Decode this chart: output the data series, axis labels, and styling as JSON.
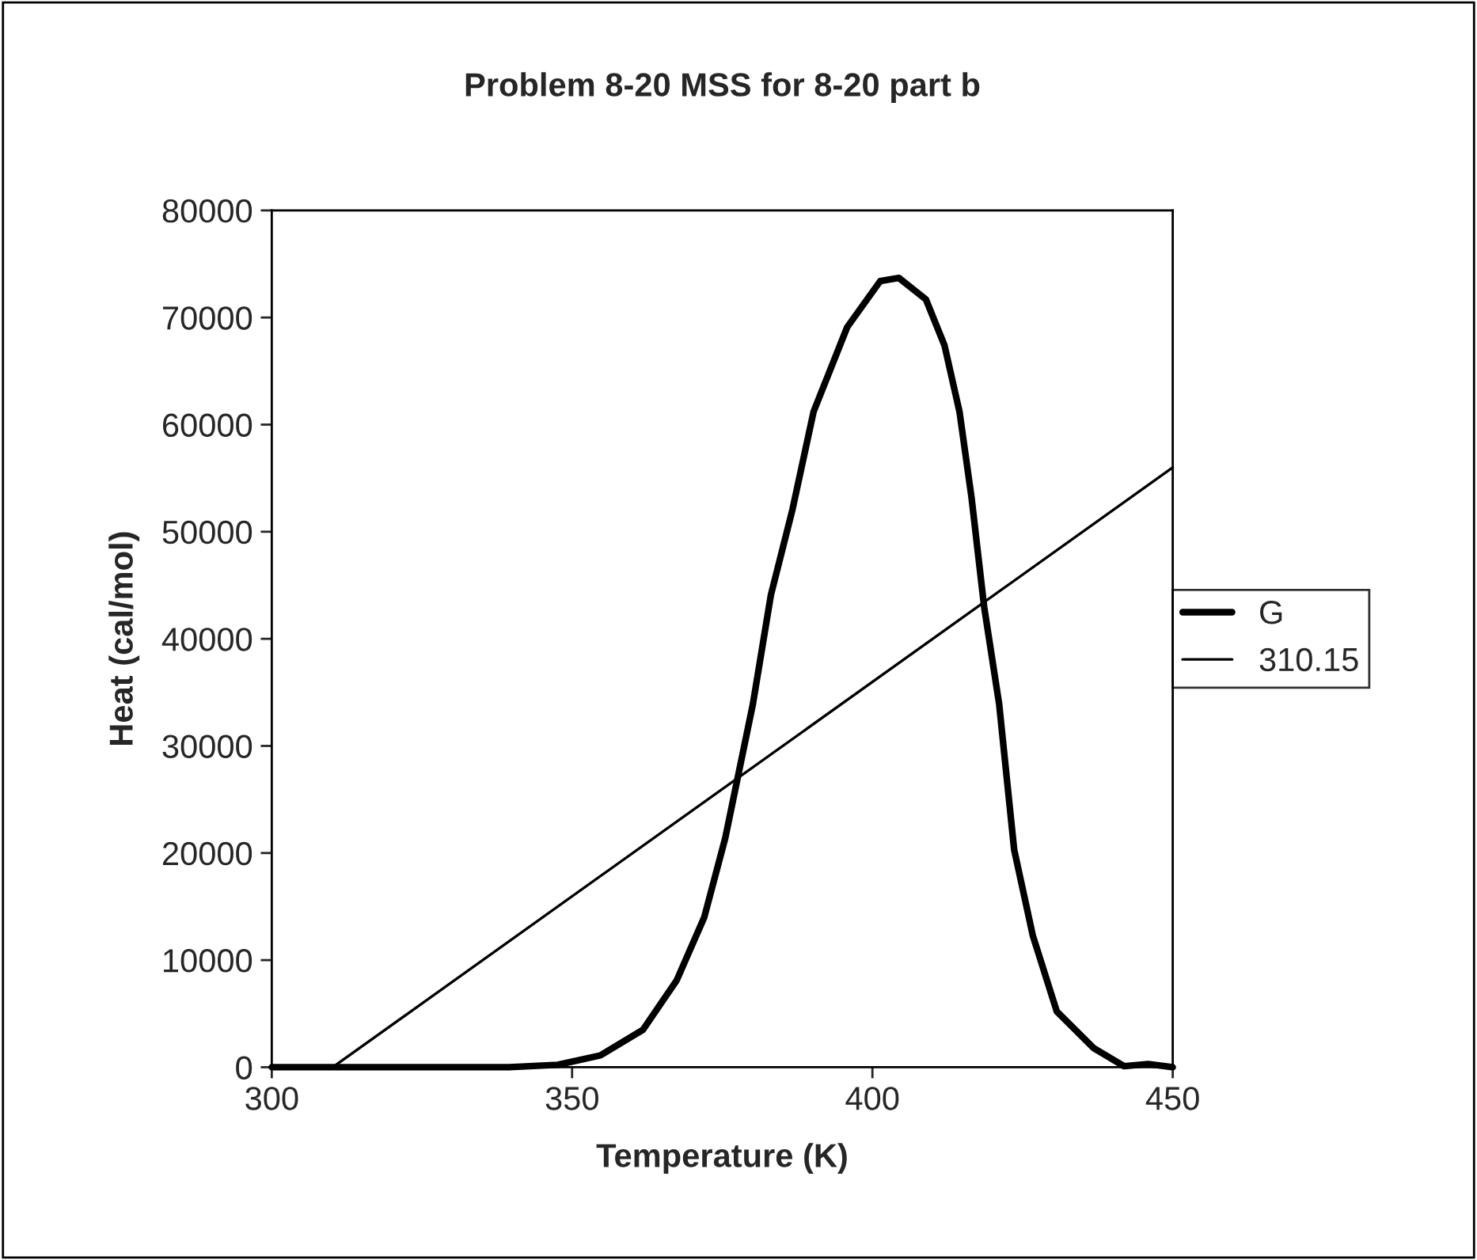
{
  "chart_data": {
    "type": "line",
    "title": "Problem 8-20 MSS for 8-20 part b",
    "xlabel": "Temperature (K)",
    "ylabel": "Heat (cal/mol)",
    "xlim": [
      300,
      450
    ],
    "xticks": [
      300,
      350,
      400,
      450
    ],
    "ylim": [
      0,
      80000
    ],
    "yticks": [
      0,
      10000,
      20000,
      30000,
      40000,
      50000,
      60000,
      70000,
      80000
    ],
    "grid": false,
    "legend": "right",
    "marker": "none",
    "series": [
      {
        "name": "G",
        "color": "#000000",
        "x": [
          300,
          339.5,
          347.6,
          354.7,
          361.8,
          367.4,
          372.0,
          375.5,
          378.0,
          380.1,
          383.1,
          386.7,
          390.2,
          395.8,
          401.3,
          404.4,
          408.9,
          412.0,
          414.5,
          416.5,
          418.6,
          421.1,
          423.6,
          426.7,
          430.7,
          436.8,
          441.9,
          445.9,
          450
        ],
        "values": [
          0,
          0,
          230,
          1100,
          3500,
          8100,
          14000,
          21400,
          28200,
          33900,
          44100,
          52100,
          61200,
          69100,
          73400,
          73700,
          71700,
          67400,
          61200,
          53200,
          43000,
          33900,
          20300,
          12300,
          5200,
          1800,
          100,
          300,
          0
        ]
      },
      {
        "name": "310.15",
        "color": "#000000",
        "x": [
          310.15,
          450
        ],
        "values": [
          0,
          56000
        ]
      }
    ]
  }
}
